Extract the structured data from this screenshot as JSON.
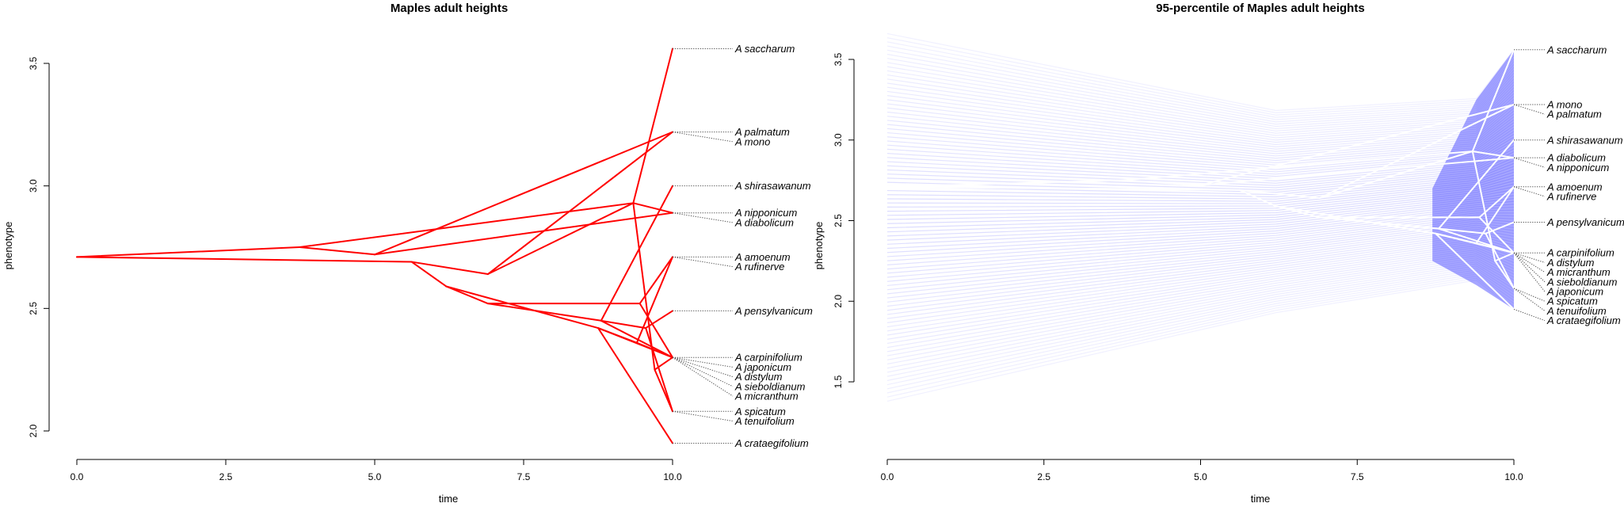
{
  "chart_data": [
    {
      "type": "line",
      "title": "Maples adult heights",
      "xlabel": "time",
      "ylabel": "phenotype",
      "xlim": [
        0,
        10
      ],
      "ylim": [
        2.0,
        3.5
      ],
      "xticks": [
        "0.0",
        "2.5",
        "5.0",
        "7.5",
        "10.0"
      ],
      "yticks": [
        "2.0",
        "2.5",
        "3.0",
        "3.5"
      ],
      "line_color": "#ff0000",
      "grid": false,
      "tips": [
        {
          "name": "A saccharum",
          "value": 3.56
        },
        {
          "name": "A palmatum",
          "value": 3.22
        },
        {
          "name": "A mono",
          "value": 3.22
        },
        {
          "name": "A shirasawanum",
          "value": 3.0
        },
        {
          "name": "A nipponicum",
          "value": 2.89
        },
        {
          "name": "A diabolicum",
          "value": 2.89
        },
        {
          "name": "A amoenum",
          "value": 2.71
        },
        {
          "name": "A rufinerve",
          "value": 2.71
        },
        {
          "name": "A pensylvanicum",
          "value": 2.49
        },
        {
          "name": "A carpinifolium",
          "value": 2.3
        },
        {
          "name": "A japonicum",
          "value": 2.3
        },
        {
          "name": "A distylum",
          "value": 2.3
        },
        {
          "name": "A sieboldianum",
          "value": 2.3
        },
        {
          "name": "A micranthum",
          "value": 2.3
        },
        {
          "name": "A spicatum",
          "value": 2.08
        },
        {
          "name": "A tenuifolium",
          "value": 2.08
        },
        {
          "name": "A crataegifolium",
          "value": 1.95
        }
      ],
      "segments": [
        [
          0.0,
          2.71,
          3.74,
          2.75
        ],
        [
          0.0,
          2.71,
          5.62,
          2.69
        ],
        [
          3.74,
          2.75,
          9.34,
          2.93
        ],
        [
          3.74,
          2.75,
          5.0,
          2.72
        ],
        [
          5.0,
          2.72,
          10.0,
          2.89
        ],
        [
          5.0,
          2.72,
          10.0,
          3.22
        ],
        [
          5.62,
          2.69,
          6.9,
          2.64
        ],
        [
          5.62,
          2.69,
          6.2,
          2.59
        ],
        [
          6.9,
          2.64,
          9.34,
          2.93
        ],
        [
          9.34,
          2.93,
          10.0,
          3.56
        ],
        [
          9.34,
          2.93,
          9.7,
          2.25
        ],
        [
          9.34,
          2.93,
          10.0,
          2.89
        ],
        [
          6.9,
          2.64,
          10.0,
          3.22
        ],
        [
          6.2,
          2.59,
          6.9,
          2.52
        ],
        [
          6.2,
          2.59,
          8.75,
          2.42
        ],
        [
          6.9,
          2.52,
          8.8,
          2.45
        ],
        [
          6.9,
          2.52,
          9.45,
          2.52
        ],
        [
          8.75,
          2.42,
          10.0,
          1.95
        ],
        [
          8.75,
          2.42,
          10.0,
          2.3
        ],
        [
          8.8,
          2.45,
          10.0,
          3.0
        ],
        [
          8.8,
          2.45,
          9.55,
          2.42
        ],
        [
          9.45,
          2.52,
          10.0,
          2.71
        ],
        [
          9.45,
          2.52,
          10.0,
          2.3
        ],
        [
          9.55,
          2.42,
          10.0,
          2.49
        ],
        [
          9.55,
          2.42,
          10.0,
          2.08
        ],
        [
          9.4,
          2.36,
          10.0,
          2.71
        ],
        [
          9.4,
          2.36,
          10.0,
          2.3
        ],
        [
          9.7,
          2.25,
          10.0,
          2.08
        ],
        [
          9.7,
          2.25,
          10.0,
          2.3
        ],
        [
          8.8,
          2.45,
          10.0,
          2.3
        ],
        [
          9.4,
          2.36,
          8.75,
          2.42
        ]
      ]
    },
    {
      "type": "area",
      "title": "95-percentile of Maples adult heights",
      "xlabel": "time",
      "ylabel": "phenotype",
      "xlim": [
        0,
        10
      ],
      "ylim": [
        1.5,
        3.5
      ],
      "xticks": [
        "0.0",
        "2.5",
        "5.0",
        "7.5",
        "10.0"
      ],
      "yticks": [
        "1.5",
        "2.0",
        "2.5",
        "3.0",
        "3.5"
      ],
      "fill_color": "#0000ff",
      "line_color": "#ffffff",
      "grid": false,
      "band": {
        "lower_start": 1.38,
        "upper_start": 3.66
      },
      "tips": [
        {
          "name": "A saccharum",
          "value": 3.56
        },
        {
          "name": "A mono",
          "value": 3.22
        },
        {
          "name": "A palmatum",
          "value": 3.22
        },
        {
          "name": "A shirasawanum",
          "value": 3.0
        },
        {
          "name": "A diabolicum",
          "value": 2.89
        },
        {
          "name": "A nipponicum",
          "value": 2.89
        },
        {
          "name": "A amoenum",
          "value": 2.71
        },
        {
          "name": "A rufinerve",
          "value": 2.71
        },
        {
          "name": "A pensylvanicum",
          "value": 2.49
        },
        {
          "name": "A carpinifolium",
          "value": 2.3
        },
        {
          "name": "A distylum",
          "value": 2.3
        },
        {
          "name": "A micranthum",
          "value": 2.3
        },
        {
          "name": "A sieboldianum",
          "value": 2.3
        },
        {
          "name": "A japonicum",
          "value": 2.3
        },
        {
          "name": "A spicatum",
          "value": 2.08
        },
        {
          "name": "A tenuifolium",
          "value": 2.08
        },
        {
          "name": "A crataegifolium",
          "value": 1.95
        }
      ]
    }
  ]
}
